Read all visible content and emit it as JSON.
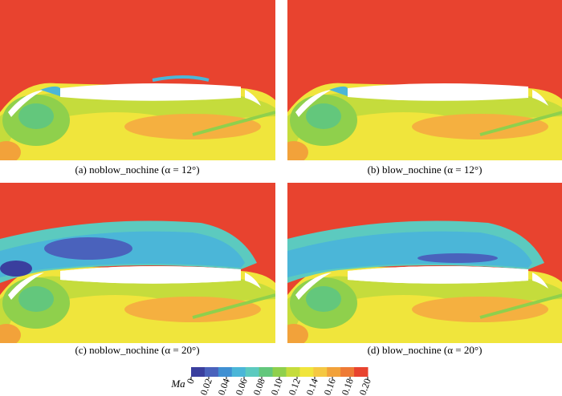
{
  "panels": [
    {
      "caption": "(a) noblow_nochine (α = 12°)"
    },
    {
      "caption": "(b) blow_nochine (α = 12°)"
    },
    {
      "caption": "(c) noblow_nochine (α = 20°)"
    },
    {
      "caption": "(d) blow_nochine (α = 20°)"
    }
  ],
  "colorbar": {
    "label": "Ma",
    "lim": [
      0,
      0.2
    ],
    "colors": [
      "#3a3f9e",
      "#4a62bc",
      "#3f8fd2",
      "#4bb6d8",
      "#5ccabf",
      "#63c77c",
      "#8fd04c",
      "#c5dc3c",
      "#f0e53c",
      "#f5c842",
      "#f2a23a",
      "#ee7a35",
      "#e8432f"
    ],
    "ticks": [
      0,
      {
        "value": 0.02,
        "label": "0.02"
      },
      {
        "value": 0.04,
        "label": "0.04"
      },
      {
        "value": 0.06,
        "label": "0.06"
      },
      {
        "value": 0.08,
        "label": "0.08"
      },
      {
        "value": 0.1,
        "label": "0.10"
      },
      {
        "value": 0.12,
        "label": "0.12"
      },
      {
        "value": 0.14,
        "label": "0.14"
      },
      {
        "value": 0.16,
        "label": "0.16"
      },
      {
        "value": 0.18,
        "label": "0.18"
      },
      {
        "value": 0.2,
        "label": "0.20"
      }
    ]
  }
}
